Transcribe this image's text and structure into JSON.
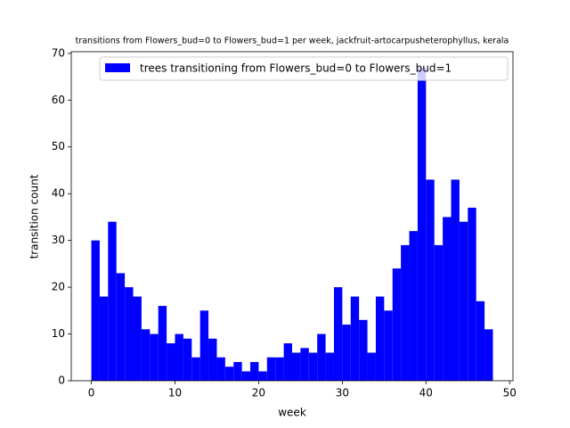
{
  "chart_data": {
    "type": "histogram",
    "title": "transitions from Flowers_bud=0 to Flowers_bud=1 per week, jackfruit-artocarpusheterophyllus, kerala",
    "x_label": "week",
    "y_label": "transition count",
    "bins": [
      0,
      1,
      2,
      3,
      4,
      5,
      6,
      7,
      8,
      9,
      10,
      11,
      12,
      13,
      14,
      15,
      16,
      17,
      18,
      19,
      20,
      21,
      22,
      23,
      24,
      25,
      26,
      27,
      28,
      29,
      30,
      31,
      32,
      33,
      34,
      35,
      36,
      37,
      38,
      39,
      40,
      41,
      42,
      43,
      44,
      45,
      46,
      47,
      48
    ],
    "series": [
      {
        "name": "trees transitioning from Flowers_bud=0 to Flowers_bud=1",
        "color": "#0000ff",
        "values": [
          30,
          18,
          34,
          23,
          20,
          18,
          11,
          10,
          16,
          8,
          10,
          9,
          5,
          15,
          9,
          5,
          3,
          4,
          2,
          4,
          2,
          5,
          5,
          8,
          6,
          7,
          6,
          10,
          6,
          20,
          12,
          18,
          13,
          6,
          18,
          15,
          24,
          29,
          32,
          67,
          43,
          29,
          35,
          43,
          34,
          37,
          17,
          11
        ]
      }
    ],
    "xlim": [
      -2.4,
      50.4
    ],
    "xticks": [
      0,
      10,
      20,
      30,
      40,
      50
    ],
    "ylim": [
      0,
      70.35
    ],
    "yticks": [
      0,
      10,
      20,
      30,
      40,
      50,
      60,
      70
    ],
    "legend": "upper right"
  }
}
